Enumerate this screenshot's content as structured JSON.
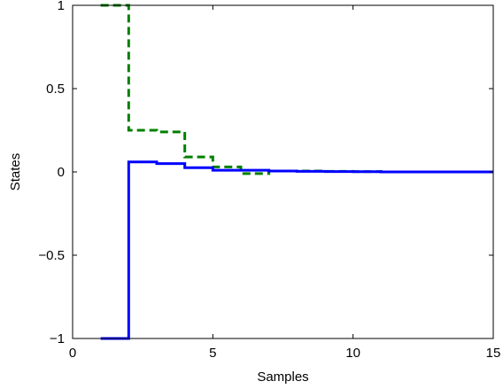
{
  "chart_data": {
    "type": "line",
    "xlabel": "Samples",
    "ylabel": "States",
    "xlim": [
      0,
      15
    ],
    "ylim": [
      -1,
      1
    ],
    "grid": false,
    "legend": "none",
    "xticks": [
      {
        "value": 0,
        "label": "0"
      },
      {
        "value": 5,
        "label": "5"
      },
      {
        "value": 10,
        "label": "10"
      },
      {
        "value": 15,
        "label": "15"
      }
    ],
    "yticks": [
      {
        "value": -1,
        "label": "−1"
      },
      {
        "value": -0.5,
        "label": "−0.5"
      },
      {
        "value": 0,
        "label": "0"
      },
      {
        "value": 0.5,
        "label": "0.5"
      },
      {
        "value": 1,
        "label": "1"
      }
    ],
    "series": [
      {
        "style": "dashed",
        "color": "#008000",
        "x": [
          1,
          2,
          3,
          4,
          5,
          6,
          7,
          8,
          9,
          10,
          11,
          12,
          13,
          14,
          15
        ],
        "y": [
          1.0,
          0.25,
          0.24,
          0.09,
          0.03,
          -0.01,
          0.005,
          0.005,
          0.003,
          0.002,
          0.0,
          0.0,
          0.0,
          0.0,
          0.0
        ]
      },
      {
        "style": "solid",
        "color": "#0000ff",
        "x": [
          1,
          2,
          3,
          4,
          5,
          6,
          7,
          8,
          9,
          10,
          11,
          12,
          13,
          14,
          15
        ],
        "y": [
          -1.0,
          0.06,
          0.05,
          0.025,
          0.01,
          0.01,
          0.005,
          0.003,
          0.002,
          0.001,
          0.0,
          0.0,
          0.0,
          0.0,
          0.0
        ]
      }
    ]
  }
}
